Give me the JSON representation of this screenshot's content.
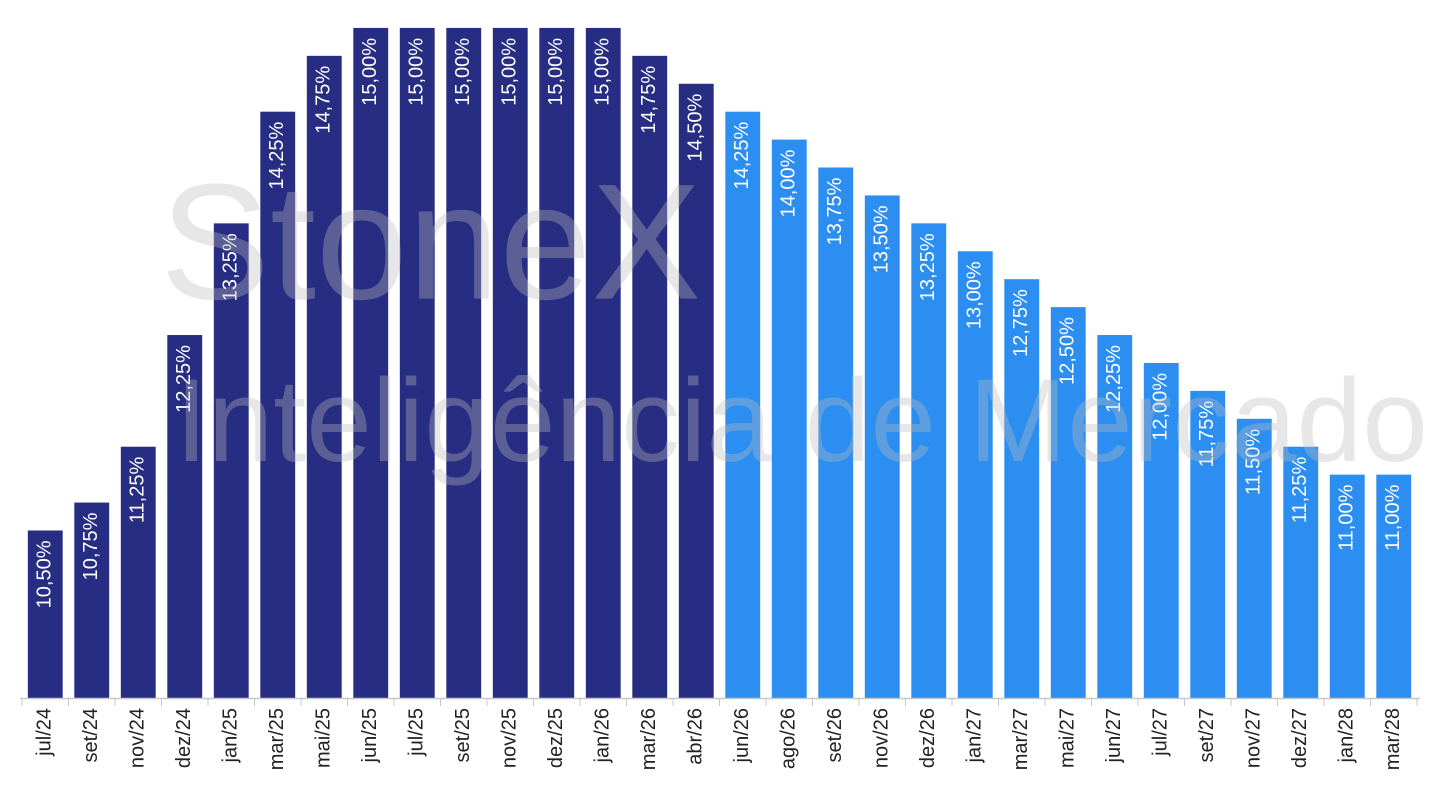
{
  "chart_data": {
    "type": "bar",
    "watermark": [
      "StoneX",
      "Inteligência de Mercado"
    ],
    "categories": [
      "jul/24",
      "set/24",
      "nov/24",
      "dez/24",
      "jan/25",
      "mar/25",
      "mai/25",
      "jun/25",
      "jul/25",
      "set/25",
      "nov/25",
      "dez/25",
      "jan/26",
      "mar/26",
      "abr/26",
      "jun/26",
      "ago/26",
      "set/26",
      "nov/26",
      "dez/26",
      "jan/27",
      "mar/27",
      "mai/27",
      "jun/27",
      "jul/27",
      "set/27",
      "nov/27",
      "dez/27",
      "jan/28",
      "mar/28"
    ],
    "values": [
      10.5,
      10.75,
      11.25,
      12.25,
      13.25,
      14.25,
      14.75,
      15,
      15,
      15,
      15,
      15,
      15,
      14.75,
      14.5,
      14.25,
      14,
      13.75,
      13.5,
      13.25,
      13,
      12.75,
      12.5,
      12.25,
      12,
      11.75,
      11.5,
      11.25,
      11,
      11
    ],
    "value_labels": [
      "10,50%",
      "10,75%",
      "11,25%",
      "12,25%",
      "13,25%",
      "14,25%",
      "14,75%",
      "15,00%",
      "15,00%",
      "15,00%",
      "15,00%",
      "15,00%",
      "15,00%",
      "14,75%",
      "14,50%",
      "14,25%",
      "14,00%",
      "13,75%",
      "13,50%",
      "13,25%",
      "13,00%",
      "12,75%",
      "12,50%",
      "12,25%",
      "12,00%",
      "11,75%",
      "11,50%",
      "11,25%",
      "11,00%",
      "11,00%"
    ],
    "colors": [
      "#262d82",
      "#262d82",
      "#262d82",
      "#262d82",
      "#262d82",
      "#262d82",
      "#262d82",
      "#262d82",
      "#262d82",
      "#262d82",
      "#262d82",
      "#262d82",
      "#262d82",
      "#262d82",
      "#262d82",
      "#2b8ef0",
      "#2b8ef0",
      "#2b8ef0",
      "#2b8ef0",
      "#2b8ef0",
      "#2b8ef0",
      "#2b8ef0",
      "#2b8ef0",
      "#2b8ef0",
      "#2b8ef0",
      "#2b8ef0",
      "#2b8ef0",
      "#2b8ef0",
      "#2b8ef0",
      "#2b8ef0"
    ],
    "ylim": [
      9,
      15.25
    ]
  }
}
